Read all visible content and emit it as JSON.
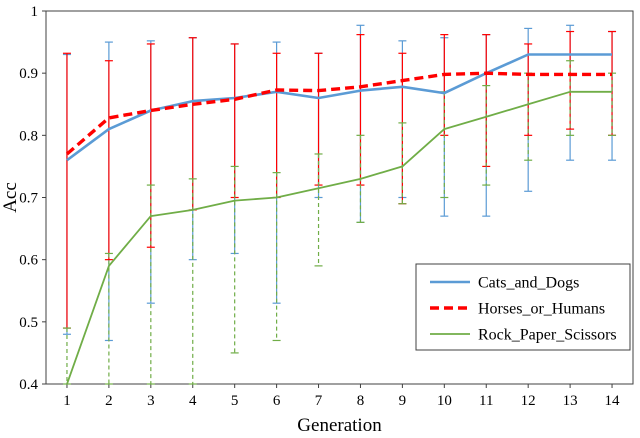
{
  "figure": {
    "background": "#ffffff"
  },
  "chart_data": {
    "type": "line",
    "title": "",
    "xlabel": "Generation",
    "ylabel": "Acc",
    "x": [
      1,
      2,
      3,
      4,
      5,
      6,
      7,
      8,
      9,
      10,
      11,
      12,
      13,
      14
    ],
    "ylim": [
      0.4,
      1.0
    ],
    "yticks": [
      0.4,
      0.5,
      0.6,
      0.7,
      0.8,
      0.9,
      1.0
    ],
    "ytick_labels": [
      "0.4",
      "0.5",
      "0.6",
      "0.7",
      "0.8",
      "0.9",
      "1"
    ],
    "grid": false,
    "legend_position": "inside-bottom-right",
    "colors": {
      "frame": "#404040",
      "text": "#000000",
      "background": "#ffffff"
    },
    "series": [
      {
        "name": "Cats_and_Dogs",
        "color": "#5B9BD5",
        "line_style": "solid",
        "err_style": "solid",
        "width": 2.6,
        "values": [
          0.76,
          0.81,
          0.84,
          0.855,
          0.86,
          0.87,
          0.86,
          0.872,
          0.878,
          0.868,
          0.9,
          0.93,
          0.93,
          0.93
        ],
        "err_low": [
          0.48,
          0.47,
          0.53,
          0.6,
          0.61,
          0.53,
          0.7,
          0.66,
          0.7,
          0.67,
          0.67,
          0.71,
          0.76,
          0.76
        ],
        "err_high": [
          0.93,
          0.95,
          0.952,
          0.957,
          0.947,
          0.95,
          0.932,
          0.977,
          0.952,
          0.957,
          0.962,
          0.972,
          0.977,
          0.967
        ]
      },
      {
        "name": "Horses_or_Humans",
        "color": "#FF0000",
        "line_style": "dashed",
        "err_style": "solid",
        "width": 3.4,
        "values": [
          0.77,
          0.828,
          0.84,
          0.85,
          0.858,
          0.873,
          0.872,
          0.878,
          0.888,
          0.898,
          0.9,
          0.898,
          0.898,
          0.898
        ],
        "err_low": [
          0.49,
          0.6,
          0.62,
          0.68,
          0.7,
          0.7,
          0.72,
          0.72,
          0.69,
          0.8,
          0.75,
          0.8,
          0.81,
          0.8
        ],
        "err_high": [
          0.932,
          0.92,
          0.947,
          0.957,
          0.947,
          0.932,
          0.932,
          0.962,
          0.932,
          0.962,
          0.962,
          0.947,
          0.967,
          0.967
        ]
      },
      {
        "name": "Rock_Paper_Scissors",
        "color": "#70AD47",
        "line_style": "solid",
        "err_style": "dashed",
        "width": 1.8,
        "values": [
          0.4,
          0.59,
          0.67,
          0.68,
          0.695,
          0.7,
          0.715,
          0.73,
          0.75,
          0.81,
          0.83,
          0.85,
          0.87,
          0.87
        ],
        "err_low": [
          0.4,
          0.4,
          0.4,
          0.4,
          0.45,
          0.47,
          0.59,
          0.66,
          0.69,
          0.7,
          0.72,
          0.76,
          0.8,
          0.8
        ],
        "err_high": [
          0.49,
          0.61,
          0.72,
          0.73,
          0.75,
          0.74,
          0.77,
          0.8,
          0.82,
          0.87,
          0.88,
          0.9,
          0.92,
          0.9
        ]
      }
    ]
  }
}
